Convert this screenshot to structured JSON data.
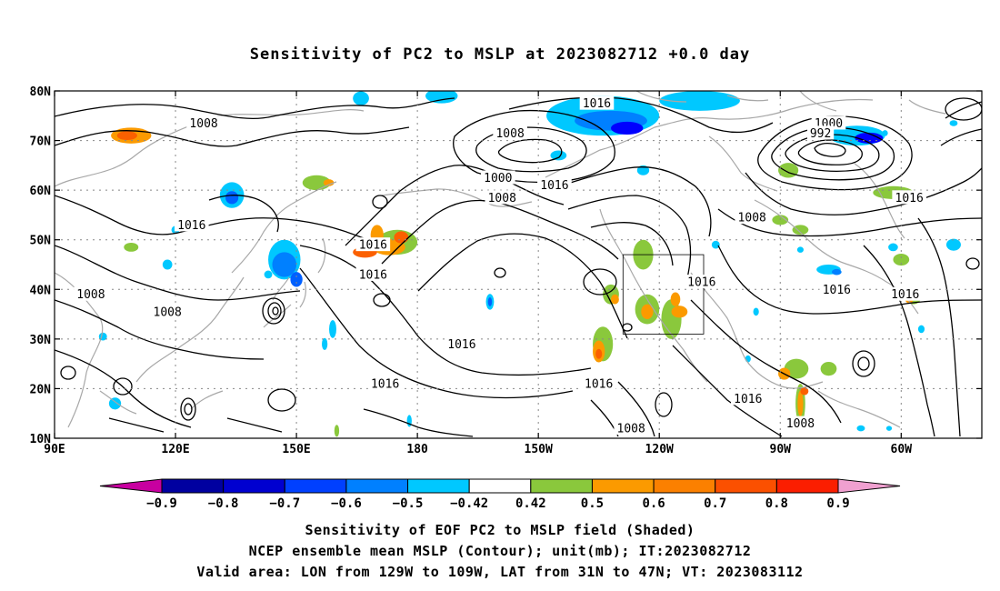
{
  "title": "Sensitivity of PC2 to MSLP at 2023082712 +0.0 day",
  "map": {
    "lon_ticks": [
      {
        "lon": 90,
        "label": "90E"
      },
      {
        "lon": 120,
        "label": "120E"
      },
      {
        "lon": 150,
        "label": "150E"
      },
      {
        "lon": 180,
        "label": "180"
      },
      {
        "lon": 210,
        "label": "150W"
      },
      {
        "lon": 240,
        "label": "120W"
      },
      {
        "lon": 270,
        "label": "90W"
      },
      {
        "lon": 300,
        "label": "60W"
      }
    ],
    "lat_ticks": [
      {
        "lat": 80,
        "label": "80N"
      },
      {
        "lat": 70,
        "label": "70N"
      },
      {
        "lat": 60,
        "label": "60N"
      },
      {
        "lat": 50,
        "label": "50N"
      },
      {
        "lat": 40,
        "label": "40N"
      },
      {
        "lat": 30,
        "label": "30N"
      },
      {
        "lat": 20,
        "label": "20N"
      },
      {
        "lat": 10,
        "label": "10N"
      }
    ],
    "contour_labels": [
      {
        "lon": 127,
        "lat": 73.5,
        "text": "1008"
      },
      {
        "lon": 224.5,
        "lat": 77.5,
        "text": "1016"
      },
      {
        "lon": 203,
        "lat": 71.5,
        "text": "1008"
      },
      {
        "lon": 282,
        "lat": 73.5,
        "text": "1000"
      },
      {
        "lon": 280,
        "lat": 71.5,
        "text": "992"
      },
      {
        "lon": 200,
        "lat": 62.5,
        "text": "1000"
      },
      {
        "lon": 201,
        "lat": 58.5,
        "text": "1008"
      },
      {
        "lon": 214,
        "lat": 61,
        "text": "1016"
      },
      {
        "lon": 124,
        "lat": 53,
        "text": "1016"
      },
      {
        "lon": 169,
        "lat": 49,
        "text": "1016"
      },
      {
        "lon": 169,
        "lat": 43,
        "text": "1016"
      },
      {
        "lon": 263,
        "lat": 54.5,
        "text": "1008"
      },
      {
        "lon": 302,
        "lat": 58.5,
        "text": "1016"
      },
      {
        "lon": 99,
        "lat": 39,
        "text": "1008"
      },
      {
        "lon": 118,
        "lat": 35.5,
        "text": "1008"
      },
      {
        "lon": 250.5,
        "lat": 41.5,
        "text": "1016"
      },
      {
        "lon": 284,
        "lat": 40,
        "text": "1016"
      },
      {
        "lon": 301,
        "lat": 39,
        "text": "1016"
      },
      {
        "lon": 191,
        "lat": 29,
        "text": "1016"
      },
      {
        "lon": 172,
        "lat": 21,
        "text": "1016"
      },
      {
        "lon": 225,
        "lat": 21,
        "text": "1016"
      },
      {
        "lon": 262,
        "lat": 18,
        "text": "1016"
      },
      {
        "lon": 275,
        "lat": 13,
        "text": "1008"
      },
      {
        "lon": 233,
        "lat": 12,
        "text": "1008"
      }
    ],
    "shaded_blobs": [
      {
        "lon": 109,
        "lat": 71,
        "rx": 5,
        "ry": 1.6,
        "color": "#fb9a00"
      },
      {
        "lon": 108,
        "lat": 71,
        "rx": 2.5,
        "ry": 0.9,
        "color": "#fb6000"
      },
      {
        "lon": 134,
        "lat": 59,
        "rx": 3,
        "ry": 2.6,
        "color": "#00c8ff"
      },
      {
        "lon": 134,
        "lat": 58.5,
        "rx": 1.6,
        "ry": 1.3,
        "color": "#0060ff"
      },
      {
        "lon": 147,
        "lat": 46,
        "rx": 4,
        "ry": 4,
        "color": "#00c8ff"
      },
      {
        "lon": 147,
        "lat": 45,
        "rx": 3,
        "ry": 2.5,
        "color": "#0080ff"
      },
      {
        "lon": 150,
        "lat": 42,
        "rx": 1.5,
        "ry": 1.5,
        "color": "#0060ff"
      },
      {
        "lon": 155,
        "lat": 61.5,
        "rx": 3.5,
        "ry": 1.5,
        "color": "#8ac83c"
      },
      {
        "lon": 158,
        "lat": 61.5,
        "rx": 1.3,
        "ry": 0.7,
        "color": "#fb9a00"
      },
      {
        "lon": 175,
        "lat": 49.5,
        "rx": 5,
        "ry": 2.5,
        "color": "#8ac83c"
      },
      {
        "lon": 173,
        "lat": 48.5,
        "rx": 4,
        "ry": 1.6,
        "color": "#fb9a00"
      },
      {
        "lon": 176,
        "lat": 50.5,
        "rx": 1.8,
        "ry": 1.2,
        "color": "#fb6000"
      },
      {
        "lon": 167,
        "lat": 47.5,
        "rx": 3,
        "ry": 1.1,
        "color": "#fb6000"
      },
      {
        "lon": 170,
        "lat": 51,
        "rx": 1.6,
        "ry": 2,
        "color": "#fb9a00"
      },
      {
        "lon": 166,
        "lat": 78.5,
        "rx": 2,
        "ry": 1.4,
        "color": "#00c8ff"
      },
      {
        "lon": 186,
        "lat": 79,
        "rx": 4,
        "ry": 1.5,
        "color": "#00c8ff"
      },
      {
        "lon": 226,
        "lat": 75,
        "rx": 14,
        "ry": 4,
        "color": "#00c8ff"
      },
      {
        "lon": 228,
        "lat": 74,
        "rx": 9,
        "ry": 2,
        "color": "#0080ff"
      },
      {
        "lon": 232,
        "lat": 72.5,
        "rx": 4,
        "ry": 1.3,
        "color": "#0000ff"
      },
      {
        "lon": 250,
        "lat": 78,
        "rx": 10,
        "ry": 2,
        "color": "#00c8ff"
      },
      {
        "lon": 215,
        "lat": 67,
        "rx": 2,
        "ry": 1,
        "color": "#00c8ff"
      },
      {
        "lon": 236,
        "lat": 64,
        "rx": 1.5,
        "ry": 1,
        "color": "#00c8ff"
      },
      {
        "lon": 289,
        "lat": 71,
        "rx": 7,
        "ry": 2,
        "color": "#00c8ff"
      },
      {
        "lon": 292,
        "lat": 70.5,
        "rx": 3.5,
        "ry": 1.1,
        "color": "#0000ff"
      },
      {
        "lon": 272,
        "lat": 64,
        "rx": 2.5,
        "ry": 1.5,
        "color": "#8ac83c"
      },
      {
        "lon": 298,
        "lat": 59.5,
        "rx": 5,
        "ry": 1.3,
        "color": "#8ac83c"
      },
      {
        "lon": 270,
        "lat": 54,
        "rx": 2,
        "ry": 1,
        "color": "#8ac83c"
      },
      {
        "lon": 275,
        "lat": 52,
        "rx": 2,
        "ry": 1,
        "color": "#8ac83c"
      },
      {
        "lon": 236,
        "lat": 47,
        "rx": 2.5,
        "ry": 3,
        "color": "#8ac83c"
      },
      {
        "lon": 228,
        "lat": 39,
        "rx": 2,
        "ry": 2,
        "color": "#8ac83c"
      },
      {
        "lon": 229,
        "lat": 38,
        "rx": 1,
        "ry": 1,
        "color": "#fb9a00"
      },
      {
        "lon": 226,
        "lat": 29,
        "rx": 2.5,
        "ry": 3.5,
        "color": "#8ac83c"
      },
      {
        "lon": 225,
        "lat": 27.5,
        "rx": 1.5,
        "ry": 2.2,
        "color": "#fb9a00"
      },
      {
        "lon": 225,
        "lat": 27,
        "rx": 0.8,
        "ry": 1,
        "color": "#fb6000"
      },
      {
        "lon": 237,
        "lat": 36,
        "rx": 3,
        "ry": 3,
        "color": "#8ac83c"
      },
      {
        "lon": 237,
        "lat": 35.5,
        "rx": 1.5,
        "ry": 1.5,
        "color": "#fb9a00"
      },
      {
        "lon": 243,
        "lat": 34,
        "rx": 2.5,
        "ry": 4,
        "color": "#8ac83c"
      },
      {
        "lon": 245,
        "lat": 35.5,
        "rx": 2,
        "ry": 1.2,
        "color": "#fb9a00"
      },
      {
        "lon": 244,
        "lat": 38,
        "rx": 1.2,
        "ry": 1.4,
        "color": "#fb9a00"
      },
      {
        "lon": 274,
        "lat": 24,
        "rx": 3,
        "ry": 2,
        "color": "#8ac83c"
      },
      {
        "lon": 271,
        "lat": 23,
        "rx": 1.5,
        "ry": 1.2,
        "color": "#fb9a00"
      },
      {
        "lon": 275,
        "lat": 17,
        "rx": 1.2,
        "ry": 4,
        "color": "#8ac83c"
      },
      {
        "lon": 275,
        "lat": 17,
        "rx": 0.7,
        "ry": 2.6,
        "color": "#fb9a00"
      },
      {
        "lon": 276,
        "lat": 19.5,
        "rx": 1,
        "ry": 0.8,
        "color": "#fb6000"
      },
      {
        "lon": 282,
        "lat": 24,
        "rx": 2,
        "ry": 1.4,
        "color": "#8ac83c"
      },
      {
        "lon": 303,
        "lat": 38.5,
        "rx": 2,
        "ry": 1.5,
        "color": "#8ac83c"
      },
      {
        "lon": 302,
        "lat": 38,
        "rx": 1,
        "ry": 0.8,
        "color": "#fb9a00"
      },
      {
        "lon": 300,
        "lat": 46,
        "rx": 2,
        "ry": 1.2,
        "color": "#8ac83c"
      },
      {
        "lon": 282,
        "lat": 44,
        "rx": 3,
        "ry": 1,
        "color": "#00c8ff"
      },
      {
        "lon": 284,
        "lat": 43.5,
        "rx": 1.2,
        "ry": 0.6,
        "color": "#0080ff"
      },
      {
        "lon": 198,
        "lat": 37.5,
        "rx": 1,
        "ry": 1.6,
        "color": "#00c8ff"
      },
      {
        "lon": 198,
        "lat": 37.5,
        "rx": 0.5,
        "ry": 0.9,
        "color": "#0060ff"
      },
      {
        "lon": 159,
        "lat": 32,
        "rx": 0.9,
        "ry": 1.8,
        "color": "#00c8ff"
      },
      {
        "lon": 157,
        "lat": 29,
        "rx": 0.7,
        "ry": 1.2,
        "color": "#00c8ff"
      },
      {
        "lon": 118,
        "lat": 45,
        "rx": 1.2,
        "ry": 1,
        "color": "#00c8ff"
      },
      {
        "lon": 143,
        "lat": 43,
        "rx": 1,
        "ry": 0.8,
        "color": "#00c8ff"
      },
      {
        "lon": 120,
        "lat": 52,
        "rx": 1,
        "ry": 0.8,
        "color": "#00c8ff"
      },
      {
        "lon": 102,
        "lat": 30.5,
        "rx": 1,
        "ry": 0.8,
        "color": "#00c8ff"
      },
      {
        "lon": 105,
        "lat": 17,
        "rx": 1.5,
        "ry": 1.2,
        "color": "#00c8ff"
      },
      {
        "lon": 109,
        "lat": 48.5,
        "rx": 1.8,
        "ry": 0.9,
        "color": "#8ac83c"
      },
      {
        "lon": 160,
        "lat": 11.5,
        "rx": 0.6,
        "ry": 1.2,
        "color": "#8ac83c"
      },
      {
        "lon": 178,
        "lat": 13.5,
        "rx": 0.6,
        "ry": 1.2,
        "color": "#00c8ff"
      },
      {
        "lon": 264,
        "lat": 35.5,
        "rx": 0.7,
        "ry": 0.8,
        "color": "#00c8ff"
      },
      {
        "lon": 262,
        "lat": 26,
        "rx": 0.7,
        "ry": 0.7,
        "color": "#00c8ff"
      },
      {
        "lon": 298,
        "lat": 48.5,
        "rx": 1.2,
        "ry": 0.8,
        "color": "#00c8ff"
      },
      {
        "lon": 305,
        "lat": 32,
        "rx": 0.8,
        "ry": 0.8,
        "color": "#00c8ff"
      },
      {
        "lon": 313,
        "lat": 49,
        "rx": 1.8,
        "ry": 1.2,
        "color": "#00c8ff"
      },
      {
        "lon": 275,
        "lat": 48,
        "rx": 0.8,
        "ry": 0.6,
        "color": "#00c8ff"
      },
      {
        "lon": 254,
        "lat": 49,
        "rx": 1,
        "ry": 0.8,
        "color": "#00c8ff"
      },
      {
        "lon": 296,
        "lat": 71.5,
        "rx": 0.7,
        "ry": 0.6,
        "color": "#00c8ff"
      },
      {
        "lon": 313,
        "lat": 73.5,
        "rx": 1,
        "ry": 0.6,
        "color": "#00c8ff"
      },
      {
        "lon": 290,
        "lat": 12,
        "rx": 1,
        "ry": 0.6,
        "color": "#00c8ff"
      },
      {
        "lon": 297,
        "lat": 12,
        "rx": 0.7,
        "ry": 0.5,
        "color": "#00c8ff"
      }
    ],
    "valid_area_box": {
      "lon_min": 231,
      "lon_max": 251,
      "lat_min": 31,
      "lat_max": 47
    }
  },
  "colorbar": {
    "labels": [
      "−0.9",
      "−0.8",
      "−0.7",
      "−0.6",
      "−0.5",
      "−0.42",
      "0.42",
      "0.5",
      "0.6",
      "0.7",
      "0.8",
      "0.9"
    ],
    "colors": [
      "#0000a0",
      "#0000d0",
      "#0040ff",
      "#0080ff",
      "#00c8ff",
      "#ffffff",
      "#8ac83c",
      "#fb9a00",
      "#fb8000",
      "#fb5000",
      "#fb1e00"
    ],
    "low_cap_color": "#c800a0",
    "high_cap_color": "#f0a0d0"
  },
  "captions": [
    "Sensitivity of EOF PC2 to MSLP field (Shaded)",
    "NCEP ensemble mean MSLP (Contour); unit(mb); IT:2023082712",
    "Valid area: LON from 129W to 109W, LAT from 31N to 47N; VT: 2023083112"
  ]
}
